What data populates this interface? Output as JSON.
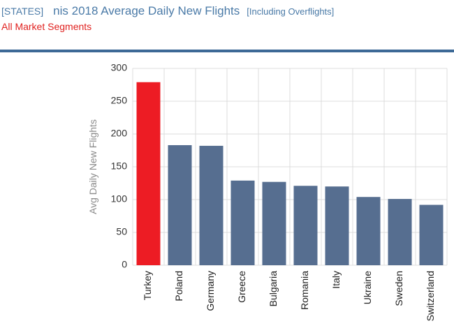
{
  "header": {
    "bracket_label": "[STATES]",
    "title": "nis 2018 Average Daily New Flights",
    "note": "[Including Overflights]",
    "segment": "All Market Segments"
  },
  "colors": {
    "highlight": "#ed1c24",
    "bar": "#566e90",
    "grid": "#dcdcdc",
    "rule": "#3d6996"
  },
  "chart_data": {
    "type": "bar",
    "title": "nis 2018 Average Daily New Flights",
    "xlabel": "",
    "ylabel": "Avg Daily New Flights",
    "ylim": [
      0,
      300
    ],
    "yticks": [
      0,
      50,
      100,
      150,
      200,
      250,
      300
    ],
    "categories": [
      "Turkey",
      "Poland",
      "Germany",
      "Greece",
      "Bulgaria",
      "Romania",
      "Italy",
      "Ukraine",
      "Sweden",
      "Switzerland"
    ],
    "values": [
      279,
      183,
      182,
      129,
      127,
      121,
      120,
      104,
      101,
      92
    ],
    "highlighted": [
      "Turkey"
    ],
    "grid": true
  }
}
